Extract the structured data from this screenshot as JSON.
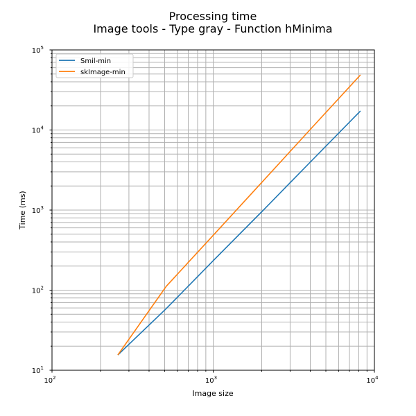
{
  "chart_data": {
    "type": "line",
    "title": "Processing time",
    "subtitle": "Image tools - Type gray - Function hMinima",
    "xlabel": "Image size",
    "ylabel": "Time (ms)",
    "xscale": "log",
    "yscale": "log",
    "xlim": [
      100,
      10000
    ],
    "ylim": [
      10,
      100000
    ],
    "grid": true,
    "legend_position": "top-left",
    "x_ticks": [
      {
        "base": "10",
        "exp": "2"
      },
      {
        "base": "10",
        "exp": "3"
      },
      {
        "base": "10",
        "exp": "4"
      }
    ],
    "y_ticks": [
      {
        "base": "10",
        "exp": "1"
      },
      {
        "base": "10",
        "exp": "2"
      },
      {
        "base": "10",
        "exp": "3"
      },
      {
        "base": "10",
        "exp": "4"
      },
      {
        "base": "10",
        "exp": "5"
      }
    ],
    "x": [
      256,
      512,
      1024,
      2048,
      4096,
      8192
    ],
    "series": [
      {
        "name": "Smil-min",
        "color": "#1f77b4",
        "values": [
          15.5,
          59,
          245,
          1000,
          4170,
          17300
        ]
      },
      {
        "name": "skImage-min",
        "color": "#ff7f0e",
        "values": [
          15.5,
          112,
          510,
          2330,
          10700,
          48700
        ]
      }
    ]
  }
}
